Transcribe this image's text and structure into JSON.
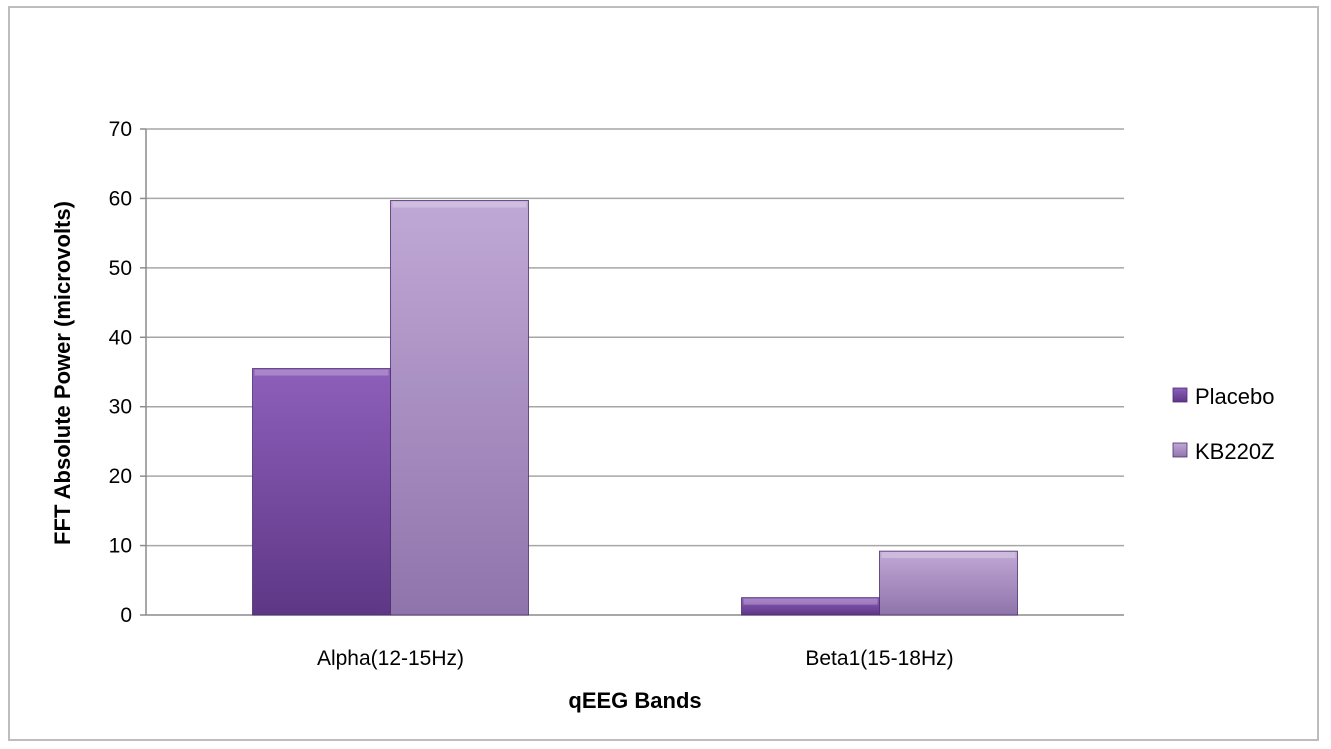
{
  "chart_data": {
    "type": "bar",
    "title": "",
    "xlabel": "qEEG Bands",
    "ylabel": "FFT Absolute Power (microvolts)",
    "categories": [
      "Alpha(12-15Hz)",
      "Beta1(15-18Hz)"
    ],
    "series": [
      {
        "name": "Placebo",
        "values": [
          35.5,
          2.5
        ],
        "color": "#7b4fa5"
      },
      {
        "name": "KB220Z",
        "values": [
          59.7,
          9.2
        ],
        "color": "#ab8fc6"
      }
    ],
    "ylim": [
      0,
      70
    ],
    "yticks": [
      "0",
      "10",
      "20",
      "30",
      "40",
      "50",
      "60",
      "70"
    ],
    "grid": true,
    "legend_position": "right"
  }
}
